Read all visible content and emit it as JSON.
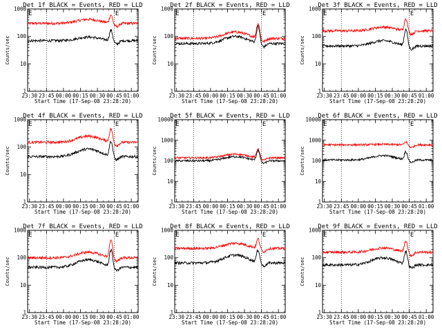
{
  "chart_data": [
    {
      "type": "line",
      "title": "Det 1f BLACK = Events, RED = LLD",
      "xlabel": "Start Time (17-Sep-08 23:28:20)",
      "ylabel": "Counts/sec",
      "x_ticks": [
        "23:30",
        "23:45",
        "00:00",
        "00:15",
        "00:30",
        "00:45",
        "01:00"
      ],
      "y_ticks": [
        "1",
        "10",
        "100",
        "1000"
      ],
      "ylim": [
        1,
        1000
      ],
      "yscale": "log",
      "markers": [
        "23:45",
        "00:45"
      ],
      "flag": "E",
      "series": [
        {
          "color": "#ff0000",
          "baseline": 300,
          "bump": 120,
          "peak": 600
        },
        {
          "color": "#000000",
          "baseline": 70,
          "bump": 25,
          "peak": 170
        }
      ]
    },
    {
      "type": "line",
      "title": "Det 2f BLACK = Events, RED = LLD",
      "xlabel": "Start Time (17-Sep-08 23:28:20)",
      "ylabel": "Counts/sec",
      "x_ticks": [
        "23:30",
        "23:45",
        "00:00",
        "00:15",
        "00:30",
        "00:45",
        "01:00"
      ],
      "y_ticks": [
        "1",
        "10",
        "100",
        "1000"
      ],
      "ylim": [
        1,
        1000
      ],
      "yscale": "log",
      "markers": [
        "23:45",
        "00:45"
      ],
      "flag": "E",
      "series": [
        {
          "color": "#ff0000",
          "baseline": 85,
          "bump": 60,
          "peak": 290
        },
        {
          "color": "#000000",
          "baseline": 55,
          "bump": 45,
          "peak": 230
        }
      ]
    },
    {
      "type": "line",
      "title": "Det 3f BLACK = Events, RED = LLD",
      "xlabel": "Start Time (17-Sep-08 23:28:20)",
      "ylabel": "Counts/sec",
      "x_ticks": [
        "23:30",
        "23:45",
        "00:00",
        "00:15",
        "00:30",
        "00:45",
        "01:00"
      ],
      "y_ticks": [
        "1",
        "10",
        "100",
        "1000"
      ],
      "ylim": [
        1,
        1000
      ],
      "yscale": "log",
      "markers": [
        "23:45",
        "00:45"
      ],
      "flag": "E",
      "series": [
        {
          "color": "#ff0000",
          "baseline": 160,
          "bump": 60,
          "peak": 450
        },
        {
          "color": "#000000",
          "baseline": 45,
          "bump": 25,
          "peak": 180
        }
      ]
    },
    {
      "type": "line",
      "title": "Det 4f BLACK = Events, RED = LLD",
      "xlabel": "Start Time (17-Sep-08 23:28:20)",
      "ylabel": "Counts/sec",
      "x_ticks": [
        "23:30",
        "23:45",
        "00:00",
        "00:15",
        "00:30",
        "00:45",
        "01:00"
      ],
      "y_ticks": [
        "1",
        "10",
        "100",
        "1000"
      ],
      "ylim": [
        1,
        1000
      ],
      "yscale": "log",
      "markers": [
        "23:45",
        "00:45"
      ],
      "flag": "E",
      "series": [
        {
          "color": "#ff0000",
          "baseline": 150,
          "bump": 100,
          "peak": 450
        },
        {
          "color": "#000000",
          "baseline": 45,
          "bump": 40,
          "peak": 160
        }
      ]
    },
    {
      "type": "line",
      "title": "Det 5f BLACK = Events, RED = LLD",
      "xlabel": "Start Time (17-Sep-08 23:28:20)",
      "ylabel": "Counts/sec",
      "x_ticks": [
        "23:30",
        "23:45",
        "00:00",
        "00:15",
        "00:30",
        "00:45",
        "01:00"
      ],
      "y_ticks": [
        "1",
        "10",
        "100",
        "1000",
        "10000"
      ],
      "ylim": [
        1,
        10000
      ],
      "yscale": "log",
      "markers": [
        "23:45",
        "00:45"
      ],
      "flag": "E",
      "series": [
        {
          "color": "#ff0000",
          "baseline": 140,
          "bump": 70,
          "peak": 380
        },
        {
          "color": "#000000",
          "baseline": 100,
          "bump": 60,
          "peak": 320
        }
      ]
    },
    {
      "type": "line",
      "title": "Det 6f BLACK = Events, RED = LLD",
      "xlabel": "Start Time (17-Sep-08 23:28:20)",
      "ylabel": "Counts/sec",
      "x_ticks": [
        "23:30",
        "23:45",
        "00:00",
        "00:15",
        "00:30",
        "00:45",
        "01:00"
      ],
      "y_ticks": [
        "1",
        "10",
        "100",
        "1000",
        "10000"
      ],
      "ylim": [
        1,
        10000
      ],
      "yscale": "log",
      "markers": [
        "23:45",
        "00:45"
      ],
      "flag": "E",
      "series": [
        {
          "color": "#ff0000",
          "baseline": 600,
          "bump": 30,
          "peak": 850
        },
        {
          "color": "#000000",
          "baseline": 110,
          "bump": 70,
          "peak": 280
        }
      ]
    },
    {
      "type": "line",
      "title": "Det 7f BLACK = Events, RED = LLD",
      "xlabel": "Start Time (17-Sep-08 23:28:20)",
      "ylabel": "Counts/sec",
      "x_ticks": [
        "23:30",
        "23:45",
        "00:00",
        "00:15",
        "00:30",
        "00:45",
        "01:00"
      ],
      "y_ticks": [
        "1",
        "10",
        "100",
        "1000"
      ],
      "ylim": [
        1,
        1000
      ],
      "yscale": "log",
      "markers": [
        "23:45",
        "00:45"
      ],
      "flag": "E",
      "series": [
        {
          "color": "#ff0000",
          "baseline": 100,
          "bump": 60,
          "peak": 420
        },
        {
          "color": "#000000",
          "baseline": 45,
          "bump": 40,
          "peak": 190
        }
      ]
    },
    {
      "type": "line",
      "title": "Det 8f BLACK = Events, RED = LLD",
      "xlabel": "Start Time (17-Sep-08 23:28:20)",
      "ylabel": "Counts/sec",
      "x_ticks": [
        "23:30",
        "23:45",
        "00:00",
        "00:15",
        "00:30",
        "00:45",
        "01:00"
      ],
      "y_ticks": [
        "1",
        "10",
        "100",
        "1000"
      ],
      "ylim": [
        1,
        1000
      ],
      "yscale": "log",
      "markers": [
        "23:45",
        "00:45"
      ],
      "flag": "E",
      "series": [
        {
          "color": "#ff0000",
          "baseline": 220,
          "bump": 120,
          "peak": 480
        },
        {
          "color": "#000000",
          "baseline": 65,
          "bump": 60,
          "peak": 190
        }
      ]
    },
    {
      "type": "line",
      "title": "Det 9f BLACK = Events, RED = LLD",
      "xlabel": "Start Time (17-Sep-08 23:28:20)",
      "ylabel": "Counts/sec",
      "x_ticks": [
        "23:30",
        "23:45",
        "00:00",
        "00:15",
        "00:30",
        "00:45",
        "01:00"
      ],
      "y_ticks": [
        "1",
        "10",
        "100",
        "1000"
      ],
      "ylim": [
        1,
        1000
      ],
      "yscale": "log",
      "markers": [
        "23:45",
        "00:45"
      ],
      "flag": "E",
      "series": [
        {
          "color": "#ff0000",
          "baseline": 160,
          "bump": 70,
          "peak": 420
        },
        {
          "color": "#000000",
          "baseline": 55,
          "bump": 45,
          "peak": 170
        }
      ]
    }
  ]
}
